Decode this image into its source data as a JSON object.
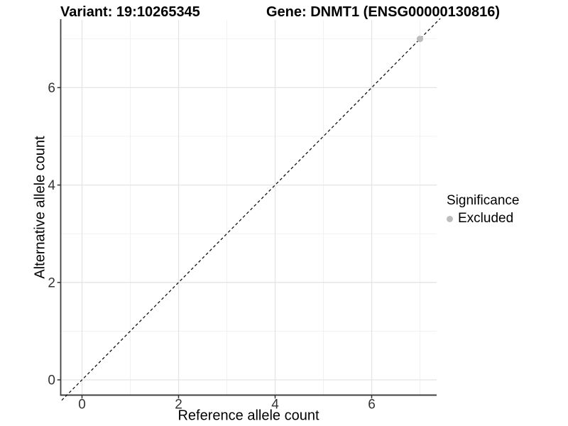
{
  "chart_data": {
    "type": "scatter",
    "title_left": "Variant: 19:10265345",
    "title_right": "Gene: DNMT1 (ENSG00000130816)",
    "xlabel": "Reference allele count",
    "ylabel": "Alternative allele count",
    "xlim": [
      -0.42,
      7.35
    ],
    "ylim": [
      -0.35,
      7.4
    ],
    "xticks": [
      0,
      2,
      4,
      6
    ],
    "yticks": [
      0,
      2,
      4,
      6
    ],
    "minor_xticks": [
      1,
      3,
      5,
      7
    ],
    "minor_yticks": [
      1,
      3,
      5,
      7
    ],
    "grid": true,
    "points": [
      {
        "x": 7,
        "y": 7,
        "series": "Excluded"
      }
    ],
    "identity_line": {
      "style": "dashed",
      "equation": "y = x",
      "from": -0.42,
      "to": 7.42
    },
    "legend": {
      "title": "Significance",
      "position": "right",
      "items": [
        {
          "label": "Excluded",
          "color": "#bdbdbd"
        }
      ]
    },
    "colors": {
      "background": "#ffffff",
      "point": "#bdbdbd",
      "grid_major": "#e4e4e4",
      "grid_minor": "#f1f1f1",
      "axis_line": "#404040",
      "tick_text": "#333333",
      "dashed_line": "#111111"
    }
  }
}
